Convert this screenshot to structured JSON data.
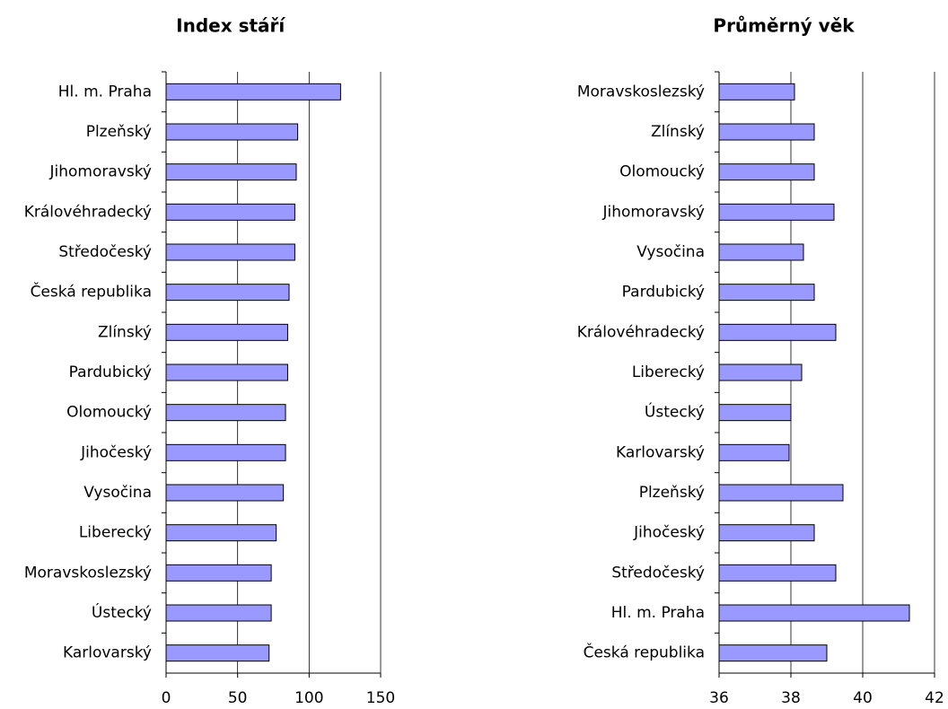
{
  "chart_data": [
    {
      "type": "barh",
      "title": "Index stáří",
      "categories": [
        "Hl. m. Praha",
        "Plzeňský",
        "Jihomoravský",
        "Královéhradecký",
        "Středočeský",
        "Česká republika",
        "Zlínský",
        "Pardubický",
        "Olomoucký",
        "Jihočeský",
        "Vysočina",
        "Liberecký",
        "Moravskoslezský",
        "Ústecký",
        "Karlovarský"
      ],
      "values": [
        122,
        92,
        91,
        90,
        90,
        86,
        85,
        85,
        83.5,
        83.5,
        82,
        77,
        73.5,
        73.5,
        72
      ],
      "color": "#9999ff",
      "xlim": [
        0,
        150
      ],
      "xticks": [
        0,
        50,
        100,
        150
      ],
      "grid": true
    },
    {
      "type": "barh",
      "title": "Průměrný věk",
      "categories": [
        "Moravskoslezský",
        "Zlínský",
        "Olomoucký",
        "Jihomoravský",
        "Vysočina",
        "Pardubický",
        "Královéhradecký",
        "Liberecký",
        "Ústecký",
        "Karlovarský",
        "Plzeňský",
        "Jihočeský",
        "Středočeský",
        "Hl. m. Praha",
        "Česká republika"
      ],
      "values": [
        38.1,
        38.65,
        38.65,
        39.2,
        38.35,
        38.65,
        39.25,
        38.3,
        38.0,
        37.95,
        39.45,
        38.65,
        39.25,
        41.3,
        39.0
      ],
      "color": "#9999ff",
      "xlim": [
        36,
        42
      ],
      "xticks": [
        36,
        38,
        40,
        42
      ],
      "grid": true
    }
  ]
}
